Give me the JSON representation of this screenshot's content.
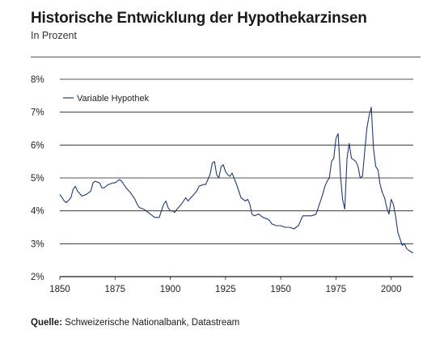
{
  "header": {
    "title": "Historische Entwicklung der Hypothekarzinsen",
    "subtitle": "In Prozent"
  },
  "footer": {
    "source_label": "Quelle:",
    "source_text": " Schweizerische Nationalbank, Datastream"
  },
  "colors": {
    "line": "#1f3b6e",
    "grid": "#1a1a1a"
  },
  "chart_data": {
    "type": "line",
    "title": "Historische Entwicklung der Hypothekarzinsen",
    "subtitle": "In Prozent",
    "xlim": [
      1850,
      2010
    ],
    "ylim": [
      2,
      8
    ],
    "x_ticks": [
      1850,
      1875,
      1900,
      1925,
      1950,
      1975,
      2000
    ],
    "y_ticks": [
      2,
      3,
      4,
      5,
      6,
      7,
      8
    ],
    "y_tick_labels": [
      "2%",
      "3%",
      "4%",
      "5%",
      "6%",
      "7%",
      "8%"
    ],
    "grid": "horizontal",
    "legend_position": "top-left",
    "series": [
      {
        "name": "Variable Hypothek",
        "x": [
          1850,
          1852,
          1853,
          1855,
          1856,
          1857,
          1858,
          1860,
          1862,
          1864,
          1865,
          1866,
          1868,
          1869,
          1870,
          1872,
          1874,
          1875,
          1876,
          1877,
          1878,
          1880,
          1882,
          1884,
          1885,
          1886,
          1888,
          1890,
          1892,
          1893,
          1895,
          1896,
          1897,
          1898,
          1899,
          1900,
          1901,
          1902,
          1903,
          1905,
          1907,
          1908,
          1910,
          1912,
          1913,
          1915,
          1916,
          1918,
          1919,
          1920,
          1921,
          1922,
          1923,
          1924,
          1925,
          1926,
          1927,
          1928,
          1930,
          1932,
          1934,
          1935,
          1936,
          1937,
          1938,
          1940,
          1942,
          1944,
          1945,
          1946,
          1948,
          1950,
          1952,
          1954,
          1956,
          1958,
          1960,
          1962,
          1964,
          1966,
          1968,
          1969,
          1970,
          1971,
          1972,
          1973,
          1974,
          1975,
          1976,
          1977,
          1978,
          1979,
          1980,
          1981,
          1982,
          1983,
          1984,
          1985,
          1986,
          1987,
          1988,
          1989,
          1990,
          1991,
          1992,
          1993,
          1994,
          1995,
          1996,
          1997,
          1998,
          1999,
          2000,
          2001,
          2002,
          2003,
          2004,
          2005,
          2006,
          2007,
          2008,
          2009,
          2010
        ],
        "y": [
          4.5,
          4.3,
          4.25,
          4.4,
          4.65,
          4.75,
          4.6,
          4.45,
          4.5,
          4.6,
          4.85,
          4.9,
          4.85,
          4.7,
          4.7,
          4.8,
          4.85,
          4.85,
          4.9,
          4.95,
          4.9,
          4.7,
          4.55,
          4.35,
          4.2,
          4.1,
          4.05,
          3.95,
          3.85,
          3.8,
          3.8,
          4.0,
          4.2,
          4.3,
          4.1,
          4.0,
          4.0,
          3.95,
          4.05,
          4.2,
          4.4,
          4.3,
          4.45,
          4.6,
          4.75,
          4.8,
          4.8,
          5.1,
          5.45,
          5.5,
          5.1,
          5.0,
          5.35,
          5.4,
          5.2,
          5.1,
          5.05,
          5.15,
          4.8,
          4.4,
          4.3,
          4.35,
          4.2,
          3.9,
          3.85,
          3.9,
          3.8,
          3.75,
          3.7,
          3.6,
          3.55,
          3.55,
          3.5,
          3.5,
          3.45,
          3.55,
          3.85,
          3.85,
          3.85,
          3.9,
          4.3,
          4.5,
          4.75,
          4.9,
          5.0,
          5.5,
          5.6,
          6.2,
          6.35,
          5.1,
          4.35,
          4.05,
          5.6,
          6.05,
          5.6,
          5.55,
          5.5,
          5.35,
          5.0,
          5.05,
          5.8,
          6.5,
          6.9,
          7.15,
          5.9,
          5.35,
          5.25,
          4.8,
          4.55,
          4.4,
          4.1,
          3.9,
          4.35,
          4.2,
          3.85,
          3.35,
          3.15,
          2.95,
          3.0,
          2.85,
          2.8,
          2.75,
          2.72
        ]
      }
    ]
  }
}
